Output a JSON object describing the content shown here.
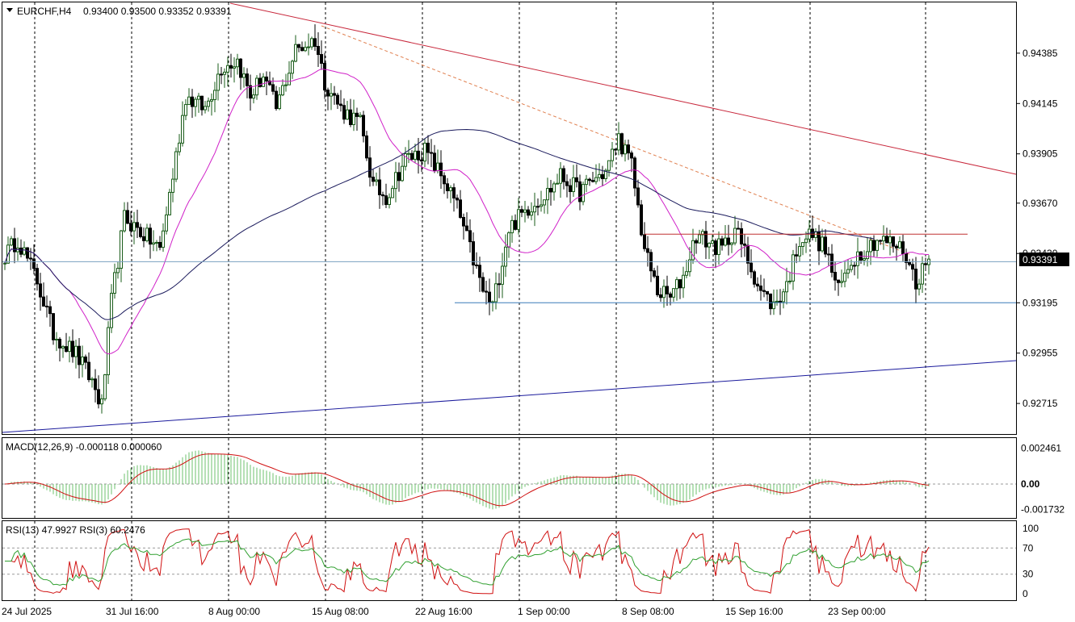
{
  "header": {
    "symbol": "EURCHF,H4",
    "ohlc": "0.93400 0.93500 0.93352 0.93391"
  },
  "macd_label": "MACD(12,26,9) -0.000118 0.000060",
  "rsi_label": "RSI(13) 47.9927  RSI(3) 60.2476",
  "colors": {
    "bull": "#1a5c1a",
    "bear": "#000000",
    "ma_fast": "#d020c8",
    "ma_slow": "#1a1a5c",
    "trend_upper": "#c8283c",
    "trend_lower": "#1a1a9c",
    "resistance": "#c03030",
    "support": "#3a7ab8",
    "price_line": "#7aa0c0",
    "macd_hist": "#6cc06c",
    "macd_signal": "#d01010",
    "rsi13": "#30a030",
    "rsi3": "#d01010"
  },
  "chart_data": [
    {
      "type": "candlestick",
      "name": "EURCHF,H4",
      "current_price": "0.93391",
      "y_ticks": [
        "0.94385",
        "0.94145",
        "0.93905",
        "0.93670",
        "0.93430",
        "0.93195",
        "0.92955",
        "0.92715"
      ],
      "ylim": [
        0.926,
        0.946
      ],
      "x_ticks": [
        "24 Jul 2025",
        "31 Jul 16:00",
        "8 Aug 00:00",
        "15 Aug 08:00",
        "22 Aug 16:00",
        "1 Sep 00:00",
        "8 Sep 08:00",
        "15 Sep 16:00",
        "23 Sep 00:00"
      ],
      "grid": "vertical-dashed",
      "anchors": [
        [
          0,
          0.9342
        ],
        [
          4,
          0.935
        ],
        [
          10,
          0.933
        ],
        [
          15,
          0.9305
        ],
        [
          22,
          0.9295
        ],
        [
          27,
          0.9282
        ],
        [
          30,
          0.927
        ],
        [
          33,
          0.932
        ],
        [
          37,
          0.936
        ],
        [
          43,
          0.9352
        ],
        [
          48,
          0.9345
        ],
        [
          52,
          0.938
        ],
        [
          56,
          0.9418
        ],
        [
          62,
          0.9412
        ],
        [
          67,
          0.9432
        ],
        [
          72,
          0.9435
        ],
        [
          76,
          0.9418
        ],
        [
          80,
          0.9428
        ],
        [
          84,
          0.9412
        ],
        [
          90,
          0.944
        ],
        [
          96,
          0.9445
        ],
        [
          99,
          0.9425
        ],
        [
          104,
          0.9412
        ],
        [
          110,
          0.9405
        ],
        [
          114,
          0.9375
        ],
        [
          118,
          0.937
        ],
        [
          124,
          0.9388
        ],
        [
          130,
          0.9392
        ],
        [
          136,
          0.9378
        ],
        [
          140,
          0.9365
        ],
        [
          144,
          0.9345
        ],
        [
          148,
          0.9325
        ],
        [
          151,
          0.9318
        ],
        [
          156,
          0.9355
        ],
        [
          162,
          0.9365
        ],
        [
          168,
          0.9372
        ],
        [
          172,
          0.938
        ],
        [
          178,
          0.9372
        ],
        [
          182,
          0.9378
        ],
        [
          186,
          0.9382
        ],
        [
          190,
          0.9398
        ],
        [
          194,
          0.9385
        ],
        [
          198,
          0.9345
        ],
        [
          202,
          0.9325
        ],
        [
          206,
          0.9322
        ],
        [
          210,
          0.9332
        ],
        [
          214,
          0.9352
        ],
        [
          218,
          0.9348
        ],
        [
          222,
          0.9345
        ],
        [
          226,
          0.9355
        ],
        [
          230,
          0.934
        ],
        [
          234,
          0.9325
        ],
        [
          238,
          0.9318
        ],
        [
          242,
          0.9328
        ],
        [
          246,
          0.935
        ],
        [
          250,
          0.9352
        ],
        [
          254,
          0.9345
        ],
        [
          258,
          0.9325
        ],
        [
          262,
          0.934
        ],
        [
          266,
          0.9345
        ],
        [
          270,
          0.935
        ],
        [
          274,
          0.9348
        ],
        [
          278,
          0.9345
        ],
        [
          282,
          0.933
        ],
        [
          286,
          0.934
        ]
      ],
      "overlays": [
        {
          "name": "trend-upper",
          "from": [
            0.9475,
            "23 Jul"
          ],
          "to": [
            0.9377,
            "end"
          ]
        },
        {
          "name": "trend-upper-dashed",
          "from": [
            0.9445,
            "15 Aug"
          ],
          "to": [
            0.9342,
            "25 Sep"
          ]
        },
        {
          "name": "resistance",
          "level": 0.93522
        },
        {
          "name": "support",
          "level": 0.93195
        },
        {
          "name": "trend-lower",
          "from": [
            0.926,
            "23 Jul"
          ],
          "to": [
            0.9295,
            "end"
          ]
        },
        {
          "name": "last-price",
          "level": 0.93391
        }
      ]
    },
    {
      "type": "bar",
      "name": "MACD(12,26,9)",
      "y_ticks": [
        "0.002461",
        "0.00",
        "-0.001732"
      ],
      "ylim": [
        -0.0021,
        0.0026
      ]
    },
    {
      "type": "line",
      "name": "RSI",
      "series": [
        {
          "name": "RSI(13)"
        },
        {
          "name": "RSI(3)"
        }
      ],
      "y_ticks": [
        "100",
        "70",
        "30",
        "0"
      ],
      "ylim": [
        0,
        100
      ]
    }
  ]
}
